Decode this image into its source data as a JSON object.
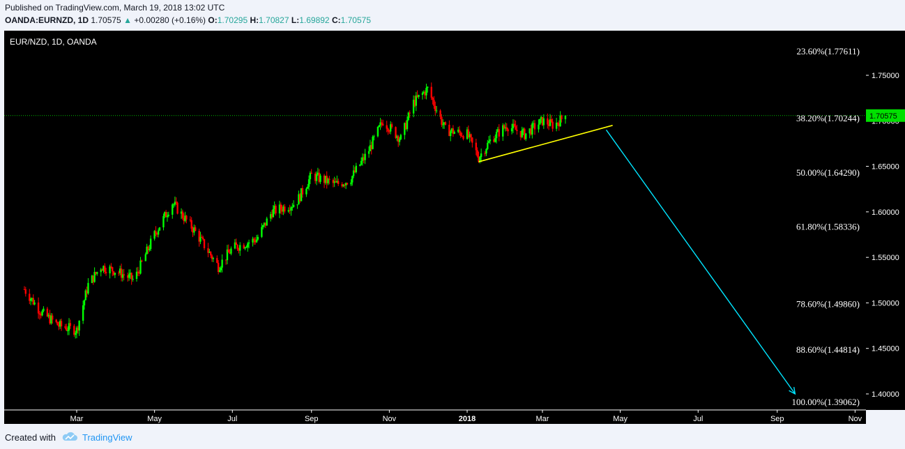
{
  "header": {
    "published": "Published on TradingView.com, March 19, 2018 13:02 UTC",
    "symbol": "OANDA:EURNZD, 1D",
    "last": "1.70575",
    "arrow": "▲",
    "change": "+0.00280 (+0.16%)",
    "o_label": "O:",
    "o_val": "1.70295",
    "h_label": "H:",
    "h_val": "1.70827",
    "l_label": "L:",
    "l_val": "1.69892",
    "c_label": "C:",
    "c_val": "1.70575"
  },
  "legend_text": "EUR/NZD, 1D, OANDA",
  "footer": {
    "created": "Created with",
    "brand": "TradingView",
    "logo_icon": "tradingview-cloud-icon"
  },
  "colors": {
    "up": "#00ff00",
    "down": "#ff0000",
    "trendline": "#ffff00",
    "projection": "#00e5ff",
    "price_line": "#00c000"
  },
  "chart_data": {
    "type": "candlestick",
    "symbol": "EUR/NZD",
    "interval": "1D",
    "ylim": [
      1.38,
      1.79
    ],
    "price_ticks": [
      "1.40000",
      "1.45000",
      "1.50000",
      "1.55000",
      "1.60000",
      "1.65000",
      "1.70000",
      "1.75000"
    ],
    "last_price_label": "1.70575",
    "x_ticks": [
      "Mar",
      "May",
      "Jul",
      "Sep",
      "Nov",
      "2018",
      "Mar",
      "May",
      "Jul",
      "Sep",
      "Nov"
    ],
    "fib_levels": [
      {
        "label": "23.60%(1.77611)",
        "price": 1.77611
      },
      {
        "label": "38.20%(1.70244)",
        "price": 1.70244
      },
      {
        "label": "50.00%(1.64290)",
        "price": 1.6429
      },
      {
        "label": "61.80%(1.58336)",
        "price": 1.58336
      },
      {
        "label": "78.60%(1.49860)",
        "price": 1.4986
      },
      {
        "label": "88.60%(1.44814)",
        "price": 1.44814
      },
      {
        "label": "100.00%(1.39062)",
        "price": 1.39062
      }
    ],
    "price_path": [
      [
        "2017-01-19",
        1.515
      ],
      [
        "2017-02-01",
        1.49
      ],
      [
        "2017-02-15",
        1.475
      ],
      [
        "2017-03-01",
        1.47
      ],
      [
        "2017-03-10",
        1.52
      ],
      [
        "2017-03-20",
        1.54
      ],
      [
        "2017-04-01",
        1.535
      ],
      [
        "2017-04-15",
        1.525
      ],
      [
        "2017-05-01",
        1.575
      ],
      [
        "2017-05-15",
        1.61
      ],
      [
        "2017-06-01",
        1.58
      ],
      [
        "2017-06-20",
        1.54
      ],
      [
        "2017-07-01",
        1.56
      ],
      [
        "2017-07-20",
        1.57
      ],
      [
        "2017-08-01",
        1.6
      ],
      [
        "2017-08-20",
        1.61
      ],
      [
        "2017-09-01",
        1.64
      ],
      [
        "2017-09-20",
        1.63
      ],
      [
        "2017-10-01",
        1.635
      ],
      [
        "2017-10-15",
        1.665
      ],
      [
        "2017-10-27",
        1.7
      ],
      [
        "2017-11-10",
        1.68
      ],
      [
        "2017-11-20",
        1.72
      ],
      [
        "2017-12-01",
        1.735
      ],
      [
        "2017-12-15",
        1.69
      ],
      [
        "2018-01-01",
        1.685
      ],
      [
        "2018-01-10",
        1.66
      ],
      [
        "2018-01-20",
        1.68
      ],
      [
        "2018-02-01",
        1.695
      ],
      [
        "2018-02-15",
        1.685
      ],
      [
        "2018-03-01",
        1.7
      ],
      [
        "2018-03-10",
        1.695
      ],
      [
        "2018-03-19",
        1.70575
      ]
    ],
    "trendline": {
      "start": [
        "2018-01-10",
        1.655
      ],
      "end": [
        "2018-04-25",
        1.695
      ]
    },
    "projection_arrow": {
      "start": [
        "2018-04-20",
        1.69
      ],
      "end": [
        "2018-09-15",
        1.4
      ]
    },
    "grid": false,
    "legend": "top-left"
  }
}
